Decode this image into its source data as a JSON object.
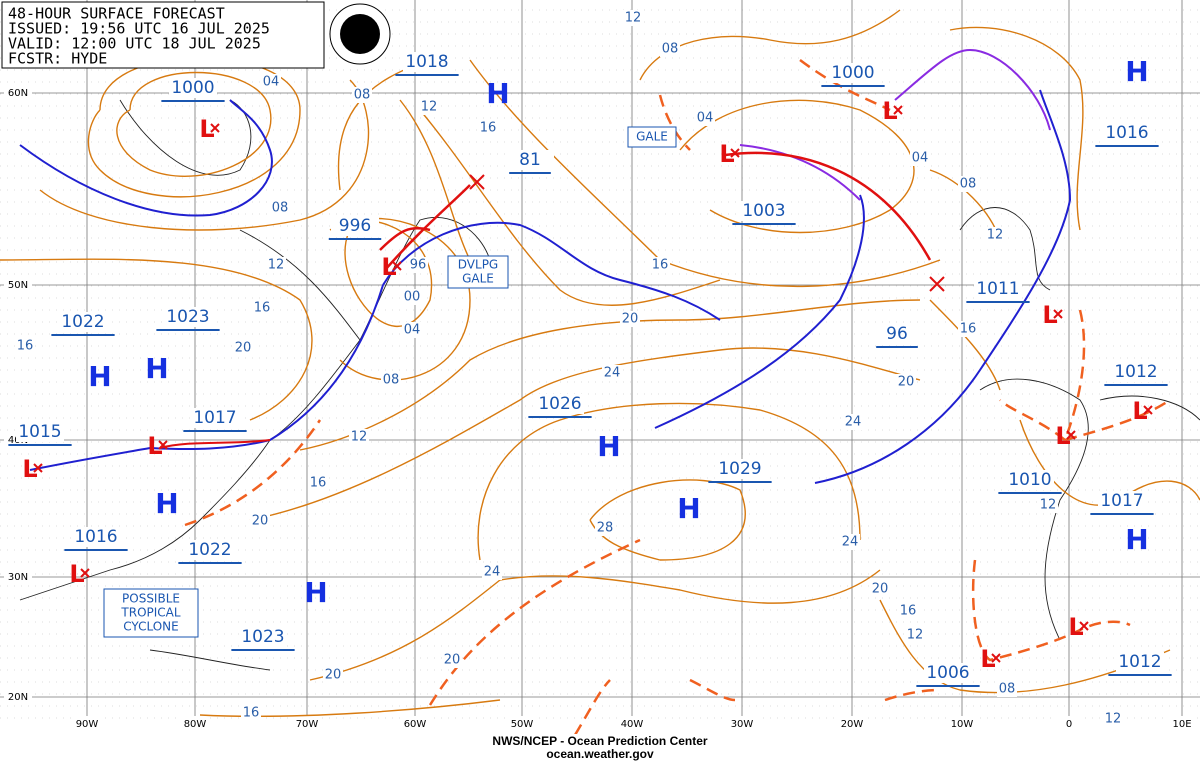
{
  "header": {
    "title": "48-HOUR SURFACE FORECAST",
    "issued": "ISSUED: 19:56 UTC 16 JUL 2025",
    "valid": "VALID:  12:00 UTC 18 JUL 2025",
    "forecaster": "FCSTR: HYDE"
  },
  "pressure_labels": [
    "1000",
    "1018",
    "81",
    "996",
    "1000",
    "1016",
    "1003",
    "1011",
    "96",
    "1022",
    "1023",
    "1012",
    "1026",
    "1017",
    "1015",
    "1029",
    "1010",
    "1017",
    "1016",
    "1022",
    "1023",
    "1006",
    "1012"
  ],
  "highs": [
    "H",
    "H",
    "H",
    "H",
    "H",
    "H",
    "H",
    "H",
    "H"
  ],
  "lows": [
    "L",
    "L",
    "L",
    "L",
    "L",
    "L",
    "L",
    "L",
    "L",
    "L",
    "L",
    "L"
  ],
  "isobar_labels": [
    "04",
    "08",
    "12",
    "16",
    "08",
    "12",
    "04",
    "04",
    "08",
    "12",
    "16",
    "20",
    "24",
    "28",
    "24",
    "20",
    "20",
    "16",
    "12",
    "16",
    "20",
    "08",
    "04",
    "00",
    "96",
    "08",
    "12",
    "16",
    "20",
    "16",
    "24",
    "24",
    "20",
    "16",
    "20",
    "16",
    "12",
    "08",
    "12",
    "12"
  ],
  "warnings": {
    "gale": "GALE",
    "developing_gale": [
      "DVLPG",
      "GALE"
    ],
    "tropical": [
      "POSSIBLE",
      "TROPICAL",
      "CYCLONE"
    ]
  },
  "latitudes": [
    "60N",
    "50N",
    "40N",
    "30N",
    "20N"
  ],
  "longitudes": [
    "90W",
    "80W",
    "70W",
    "60W",
    "50W",
    "40W",
    "30W",
    "20W",
    "10W",
    "0",
    "10E"
  ],
  "footer": {
    "agency": "NWS/NCEP - Ocean Prediction Center",
    "url": "ocean.weather.gov"
  }
}
